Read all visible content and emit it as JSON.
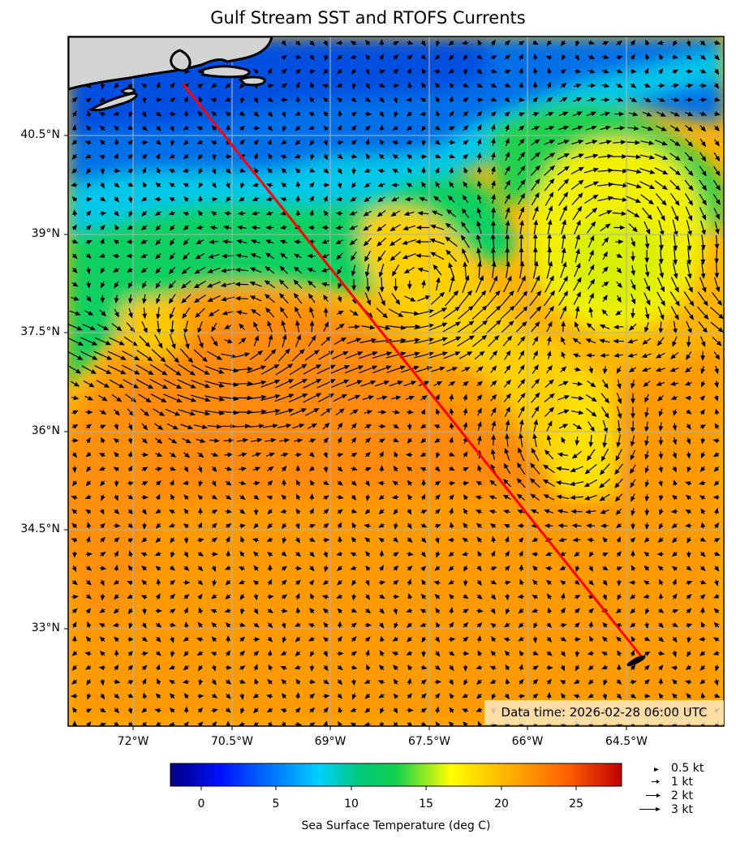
{
  "title": "Gulf Stream SST and RTOFS Currents",
  "map": {
    "lon_range": [
      -73.0,
      -63.0
    ],
    "lat_range": [
      31.5,
      42.0
    ],
    "land_color": "#d3d3d3",
    "coastline_color": "#000000",
    "grid": true,
    "quiver": true,
    "lat_ticks": [
      "40.5°N",
      "39°N",
      "37.5°N",
      "36°N",
      "34.5°N",
      "33°N"
    ],
    "lon_ticks": [
      "72°W",
      "70.5°W",
      "69°W",
      "67.5°W",
      "66°W",
      "64.5°W"
    ]
  },
  "track": {
    "color": "#ff0000",
    "start": {
      "lon": -71.25,
      "lat": 41.28
    },
    "end": {
      "lon": -64.25,
      "lat": 32.55
    },
    "end_marker_color": "#000000"
  },
  "timestamp": "Data time: 2026-02-28 06:00 UTC",
  "colorbar": {
    "label": "Sea Surface Temperature (deg C)",
    "range": [
      -2,
      28
    ],
    "ticks": [
      "0",
      "5",
      "10",
      "15",
      "20",
      "25"
    ],
    "colormap": "jet-like"
  },
  "quiver_legend": [
    {
      "label": "0.5 kt"
    },
    {
      "label": "1 kt"
    },
    {
      "label": "2 kt"
    },
    {
      "label": "3 kt"
    }
  ]
}
